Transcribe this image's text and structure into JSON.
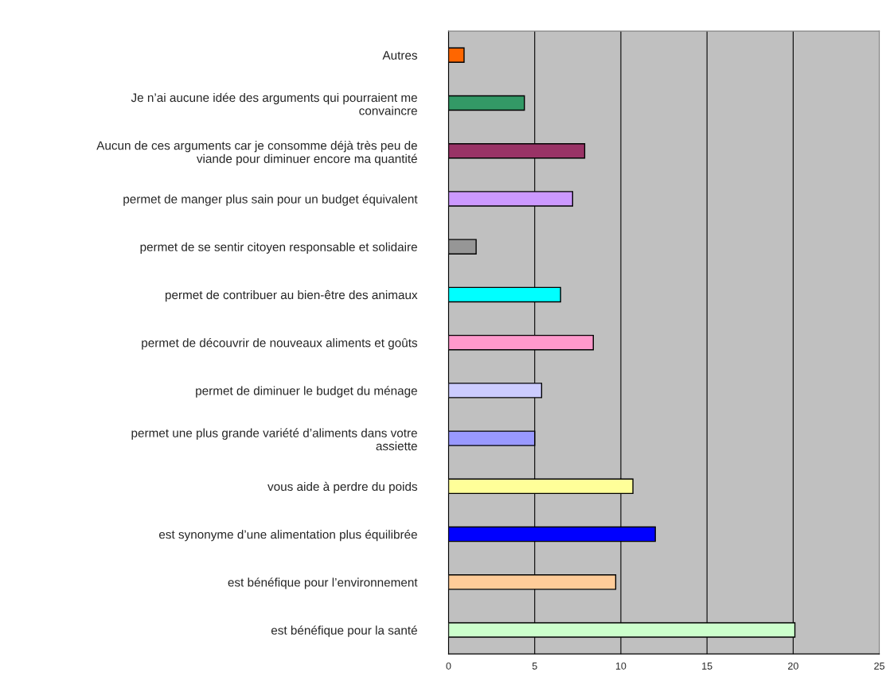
{
  "chart_data": {
    "type": "bar",
    "orientation": "horizontal",
    "categories": [
      "Autres",
      "Je n’ai aucune idée des arguments qui pourraient me convaincre",
      "Aucun de ces arguments car je consomme déjà très peu de viande pour diminuer encore ma quantité",
      "permet de manger plus sain pour un budget équivalent",
      "permet de se sentir citoyen responsable et solidaire",
      "permet de contribuer au bien-être des animaux",
      "permet de découvrir de nouveaux aliments et goûts",
      "permet de diminuer le budget du ménage",
      "permet une plus grande variété d’aliments dans votre assiette",
      "vous aide à perdre du poids",
      "est synonyme d’une alimentation plus équilibrée",
      "est bénéfique pour l’environnement",
      "est bénéfique pour la santé"
    ],
    "values": [
      0.9,
      4.4,
      7.9,
      7.2,
      1.6,
      6.5,
      8.4,
      5.4,
      5.0,
      10.7,
      12.0,
      9.7,
      20.1
    ],
    "colors": [
      "#ff6600",
      "#339966",
      "#993366",
      "#cc99ff",
      "#969696",
      "#00ffff",
      "#ff99cc",
      "#ccccff",
      "#9999ff",
      "#ffff99",
      "#0000ff",
      "#ffcc99",
      "#ccffcc"
    ],
    "xlim": [
      0,
      25
    ],
    "xticks": [
      0,
      5,
      10,
      15,
      20,
      25
    ],
    "grid": "x"
  }
}
